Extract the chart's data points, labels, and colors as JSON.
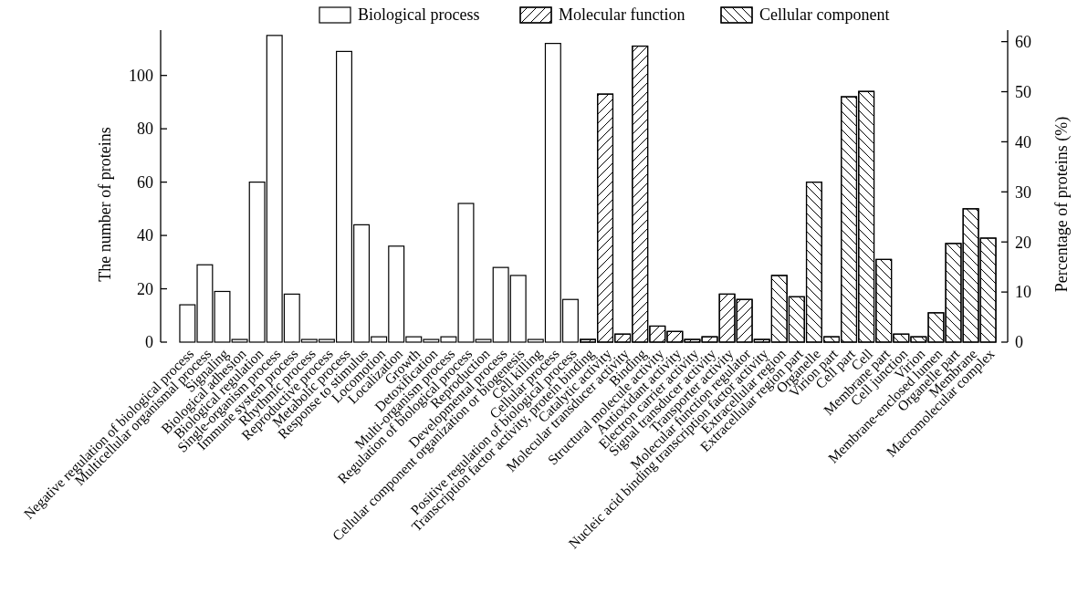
{
  "chart_data": {
    "type": "bar",
    "ylabel": "The number of proteins",
    "y2label": "Percentage of proteins (%)",
    "categories": [
      "Negative regulation of biological process",
      "Multicellular organismal process",
      "Signaling",
      "Biological adhesion",
      "Biological regulation",
      "Single-organism process",
      "Immune system process",
      "Rhythmic process",
      "Reproductive process",
      "Metabolic process",
      "Response to stimulus",
      "Locomotion",
      "Localization",
      "Growth",
      "Detoxification",
      "Multi-organism process",
      "Regulation of biological process",
      "Reproduction",
      "Developmental process",
      "Cellular component organization or biogenesis",
      "Cell killing",
      "Cellular process",
      "Positive regulation of biological process",
      "Transcription factor activity, protein binding",
      "Catalytic activity",
      "Molecular transducer activity",
      "Binding",
      "Structural molecule activity",
      "Antioxidant activity",
      "Electron carrier activity",
      "Signal transducer activity",
      "Transporter activity",
      "Molecular function regulator",
      "Nucleic acid binding transcription factor activity",
      "Extracellular region",
      "Extracellular region part",
      "Organelle",
      "Virion part",
      "Cell part",
      "Cell",
      "Membrane part",
      "Cell junction",
      "Virion",
      "Membrane-enclosed lumen",
      "Organelle part",
      "Membrane",
      "Macromolecular complex"
    ],
    "series": [
      {
        "name": "Biological process",
        "color": "#ffffff",
        "values": [
          14,
          29,
          19,
          1,
          60,
          115,
          18,
          1,
          1,
          109,
          44,
          2,
          36,
          2,
          1,
          2,
          52,
          1,
          28,
          25,
          1,
          112,
          16,
          null,
          null,
          null,
          null,
          null,
          null,
          null,
          null,
          null,
          null,
          null,
          null,
          null,
          null,
          null,
          null,
          null,
          null,
          null,
          null,
          null,
          null,
          null,
          null
        ]
      },
      {
        "name": "Molecular function",
        "color": "#ffffff",
        "values": [
          null,
          null,
          null,
          null,
          null,
          null,
          null,
          null,
          null,
          null,
          null,
          null,
          null,
          null,
          null,
          null,
          null,
          null,
          null,
          null,
          null,
          null,
          null,
          1,
          93,
          3,
          111,
          6,
          4,
          1,
          2,
          18,
          16,
          1,
          null,
          null,
          null,
          null,
          null,
          null,
          null,
          null,
          null,
          null,
          null,
          null,
          null
        ]
      },
      {
        "name": "Cellular component",
        "color": "#ffffff",
        "values": [
          null,
          null,
          null,
          null,
          null,
          null,
          null,
          null,
          null,
          null,
          null,
          null,
          null,
          null,
          null,
          null,
          null,
          null,
          null,
          null,
          null,
          null,
          null,
          null,
          null,
          null,
          null,
          null,
          null,
          null,
          null,
          null,
          null,
          null,
          25,
          17,
          60,
          2,
          92,
          94,
          31,
          3,
          2,
          11,
          37,
          50,
          39
        ]
      }
    ],
    "ylim": [
      0,
      117
    ],
    "yticks": [
      0,
      20,
      40,
      60,
      80,
      100
    ],
    "y2lim": [
      0,
      62.3
    ],
    "y2ticks": [
      0,
      10,
      20,
      30,
      40,
      50,
      60
    ],
    "legend": "top",
    "grid": false
  }
}
